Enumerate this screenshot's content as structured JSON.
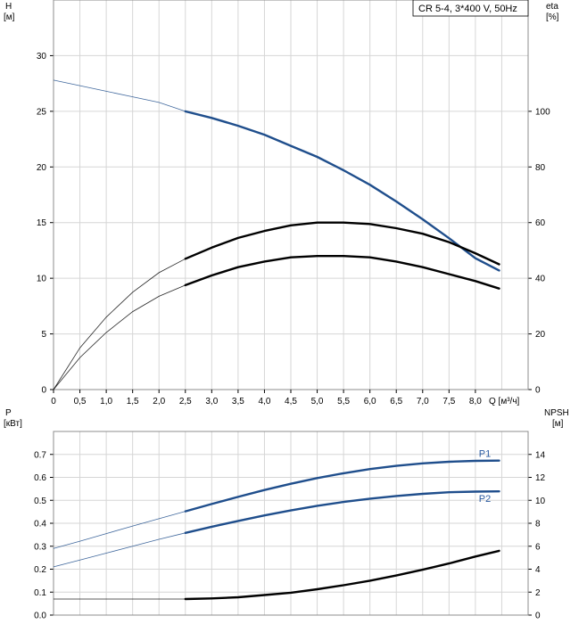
{
  "chart_data": [
    {
      "type": "line",
      "legend": "CR 5-4, 3*400 V, 50Hz",
      "legend_position": "top-right",
      "grid": true,
      "xlabel": "Q [м³/ч]",
      "xlim": [
        0,
        9
      ],
      "xticks": [
        "0",
        "0,5",
        "1,0",
        "1,5",
        "2,0",
        "2,5",
        "3,0",
        "3,5",
        "4,0",
        "4,5",
        "5,0",
        "5,5",
        "6,0",
        "6,5",
        "7,0",
        "7,5",
        "8,0"
      ],
      "ylabel_left": "H",
      "ylabel_left_unit": "[м]",
      "ylim_left": [
        0,
        35
      ],
      "yticks_left": [
        "0",
        "5",
        "10",
        "15",
        "20",
        "25",
        "30"
      ],
      "ylabel_right": "eta",
      "ylabel_right_unit": "[%]",
      "ylim_right": [
        0,
        140
      ],
      "yticks_right": [
        "0",
        "20",
        "40",
        "60",
        "80",
        "100"
      ],
      "series": [
        {
          "axis": "left",
          "color": "#1f4e8c",
          "x": [
            0,
            0.5,
            1.0,
            1.5,
            2.0,
            2.5,
            3.0,
            3.5,
            4.0,
            4.5,
            5.0,
            5.5,
            6.0,
            6.5,
            7.0,
            7.5,
            8.0,
            8.45
          ],
          "y": [
            27.8,
            27.3,
            26.8,
            26.3,
            25.8,
            25.0,
            24.4,
            23.7,
            22.9,
            21.9,
            20.9,
            19.7,
            18.4,
            16.9,
            15.3,
            13.6,
            11.8,
            10.7
          ],
          "operating_from": 2.5
        },
        {
          "axis": "right",
          "color": "#000000",
          "x": [
            0,
            0.5,
            1.0,
            1.5,
            2.0,
            2.5,
            3.0,
            3.5,
            4.0,
            4.5,
            5.0,
            5.5,
            6.0,
            6.5,
            7.0,
            7.5,
            8.0,
            8.45
          ],
          "y": [
            0,
            15,
            26,
            35,
            42,
            47,
            51,
            54.5,
            57,
            59,
            60,
            60,
            59.5,
            58,
            56,
            53,
            49,
            45
          ],
          "operating_from": 2.5
        },
        {
          "axis": "right",
          "color": "#000000",
          "x": [
            0,
            0.5,
            1.0,
            1.5,
            2.0,
            2.5,
            3.0,
            3.5,
            4.0,
            4.5,
            5.0,
            5.5,
            6.0,
            6.5,
            7.0,
            7.5,
            8.0,
            8.45
          ],
          "y": [
            0,
            11.5,
            20.5,
            28,
            33.5,
            37.5,
            41,
            44,
            46,
            47.5,
            48,
            48,
            47.5,
            46,
            44,
            41.5,
            39,
            36.3
          ],
          "operating_from": 2.5
        }
      ]
    },
    {
      "type": "line",
      "grid": true,
      "xlim": [
        0,
        9
      ],
      "ylabel_left": "P",
      "ylabel_left_unit": "[кВт]",
      "ylim_left": [
        0,
        0.8
      ],
      "yticks_left": [
        "0.0",
        "0.1",
        "0.2",
        "0.3",
        "0.4",
        "0.5",
        "0.6",
        "0.7"
      ],
      "ylabel_right": "NPSH",
      "ylabel_right_unit": "[м]",
      "ylim_right": [
        0,
        16
      ],
      "yticks_right": [
        "0",
        "2",
        "4",
        "6",
        "8",
        "10",
        "12",
        "14"
      ],
      "series": [
        {
          "name": "P1",
          "axis": "left",
          "color": "#1f4e8c",
          "x": [
            0,
            0.5,
            1.0,
            1.5,
            2.0,
            2.5,
            3.0,
            3.5,
            4.0,
            4.5,
            5.0,
            5.5,
            6.0,
            6.5,
            7.0,
            7.5,
            8.0,
            8.45
          ],
          "y": [
            0.29,
            0.322,
            0.355,
            0.388,
            0.42,
            0.452,
            0.484,
            0.515,
            0.545,
            0.572,
            0.597,
            0.618,
            0.636,
            0.65,
            0.661,
            0.668,
            0.672,
            0.673
          ],
          "operating_from": 2.5
        },
        {
          "name": "P2",
          "axis": "left",
          "color": "#1f4e8c",
          "x": [
            0,
            0.5,
            1.0,
            1.5,
            2.0,
            2.5,
            3.0,
            3.5,
            4.0,
            4.5,
            5.0,
            5.5,
            6.0,
            6.5,
            7.0,
            7.5,
            8.0,
            8.45
          ],
          "y": [
            0.21,
            0.24,
            0.27,
            0.3,
            0.33,
            0.358,
            0.385,
            0.41,
            0.434,
            0.456,
            0.476,
            0.493,
            0.507,
            0.519,
            0.528,
            0.535,
            0.538,
            0.539
          ],
          "operating_from": 2.5
        },
        {
          "axis": "right",
          "color": "#000000",
          "x": [
            0,
            0.5,
            1.0,
            1.5,
            2.0,
            2.5,
            3.0,
            3.5,
            4.0,
            4.5,
            5.0,
            5.5,
            6.0,
            6.5,
            7.0,
            7.5,
            8.0,
            8.45
          ],
          "y": [
            1.4,
            1.4,
            1.4,
            1.4,
            1.4,
            1.4,
            1.45,
            1.55,
            1.75,
            1.95,
            2.25,
            2.6,
            3.0,
            3.45,
            3.95,
            4.5,
            5.1,
            5.6
          ],
          "operating_from": 2.5
        }
      ]
    }
  ]
}
